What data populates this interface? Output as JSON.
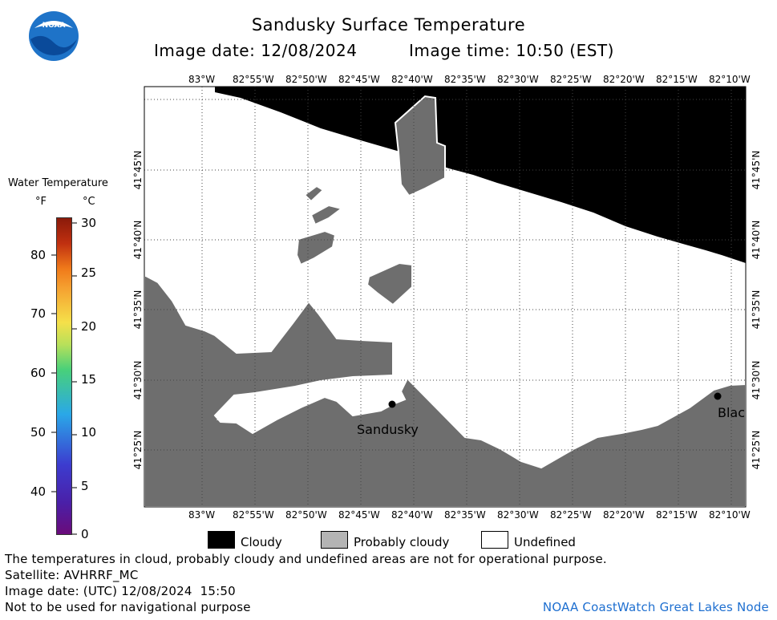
{
  "header": {
    "title": "Sandusky Surface Temperature",
    "image_date": "Image date: 12/08/2024",
    "image_time": "Image time: 10:50 (EST)"
  },
  "logo": {
    "text": "NOAA",
    "icon": "noaa-logo-icon"
  },
  "scale": {
    "title": "Water Temperature",
    "unit_f": "°F",
    "unit_c": "°C",
    "fahrenheit_ticks": [
      "80",
      "70",
      "60",
      "50",
      "40"
    ],
    "celsius_ticks": [
      "30",
      "25",
      "20",
      "15",
      "10",
      "5",
      "0"
    ],
    "gradient_colors": [
      "#6a0b7a",
      "#3c3ccf",
      "#2aa8e8",
      "#48d07a",
      "#f5e04a",
      "#f07a1a",
      "#8a1a0a"
    ]
  },
  "map": {
    "lon_labels": [
      "83°W",
      "82°55'W",
      "82°50'W",
      "82°45'W",
      "82°40'W",
      "82°35'W",
      "82°30'W",
      "82°25'W",
      "82°20'W",
      "82°15'W",
      "82°10'W"
    ],
    "lat_labels": [
      "41°45'N",
      "41°40'N",
      "41°35'N",
      "41°30'N",
      "41°25'N"
    ],
    "places": [
      {
        "name": "Sandusky"
      },
      {
        "name": "Blac"
      }
    ],
    "colors": {
      "land": "#6e6e6e",
      "cloudy": "#000000",
      "probably_cloudy": "#b4b4b4",
      "undefined": "#ffffff"
    }
  },
  "key": {
    "cloudy": "Cloudy",
    "probably_cloudy": "Probably cloudy",
    "undefined": "Undefined"
  },
  "footer": {
    "disclaimer": "The temperatures in cloud, probably cloudy and undefined areas are not for operational purpose.",
    "satellite": "Satellite: AVHRRF_MC",
    "utc_date": "Image date: (UTC) 12/08/2024  15:50",
    "nav_warning": "Not to be used for navigational purpose",
    "credit": "NOAA CoastWatch Great Lakes Node"
  }
}
